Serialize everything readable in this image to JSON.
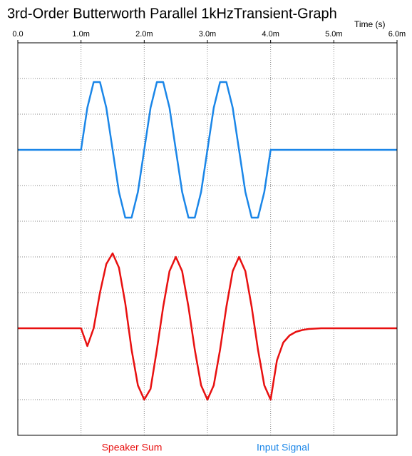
{
  "chart_data": {
    "type": "line",
    "title": "3rd-Order Butterworth Parallel 1kHzTransient-Graph",
    "x_label": "Time  (s)",
    "xlim": [
      0,
      0.006
    ],
    "xticks": [
      {
        "value": 0,
        "label": "0.0"
      },
      {
        "value": 0.001,
        "label": "1.0m"
      },
      {
        "value": 0.002,
        "label": "2.0m"
      },
      {
        "value": 0.003,
        "label": "3.0m"
      },
      {
        "value": 0.004,
        "label": "4.0m"
      },
      {
        "value": 0.005,
        "label": "5.0m"
      },
      {
        "value": 0.006,
        "label": "6.0m"
      }
    ],
    "ylim": [
      0,
      11
    ],
    "yticks": [
      0,
      1,
      2,
      3,
      4,
      5,
      6,
      7,
      8,
      9,
      10,
      11
    ],
    "grid": true,
    "x": [
      0,
      0.0001,
      0.0002,
      0.0003,
      0.0004,
      0.0005,
      0.0006,
      0.0007,
      0.0008,
      0.0009,
      0.001,
      0.0011,
      0.0012,
      0.0013,
      0.0014,
      0.0015,
      0.0016,
      0.0017,
      0.0018,
      0.0019,
      0.002,
      0.0021,
      0.0022,
      0.0023,
      0.0024,
      0.0025,
      0.0026,
      0.0027,
      0.0028,
      0.0029,
      0.003,
      0.0031,
      0.0032,
      0.0033,
      0.0034,
      0.0035,
      0.0036,
      0.0037,
      0.0038,
      0.0039,
      0.004,
      0.0041,
      0.0042,
      0.0043,
      0.0044,
      0.0045,
      0.0046,
      0.0047,
      0.0048,
      0.0049,
      0.005,
      0.0051,
      0.0052,
      0.0053,
      0.0054,
      0.0055,
      0.0056,
      0.0057,
      0.0058,
      0.0059,
      0.006
    ],
    "series": [
      {
        "name": "Input Signal",
        "color": "#1a86e8",
        "values": [
          8,
          8,
          8,
          8,
          8,
          8,
          8,
          8,
          8,
          8,
          8,
          9.18,
          9.9,
          9.9,
          9.18,
          8,
          6.82,
          6.1,
          6.1,
          6.82,
          8,
          9.18,
          9.9,
          9.9,
          9.18,
          8,
          6.82,
          6.1,
          6.1,
          6.82,
          8,
          9.18,
          9.9,
          9.9,
          9.18,
          8,
          6.82,
          6.1,
          6.1,
          6.82,
          8,
          8,
          8,
          8,
          8,
          8,
          8,
          8,
          8,
          8,
          8,
          8,
          8,
          8,
          8,
          8,
          8,
          8,
          8,
          8,
          8
        ]
      },
      {
        "name": "Speaker Sum",
        "color": "#e81010",
        "values": [
          3,
          3,
          3,
          3,
          3,
          3,
          3,
          3,
          3,
          3,
          3,
          2.5,
          3,
          4,
          4.8,
          5.1,
          4.7,
          3.7,
          2.4,
          1.4,
          1,
          1.3,
          2.4,
          3.6,
          4.6,
          5,
          4.6,
          3.6,
          2.4,
          1.4,
          1,
          1.4,
          2.4,
          3.6,
          4.6,
          5,
          4.6,
          3.6,
          2.4,
          1.4,
          1,
          2.1,
          2.6,
          2.8,
          2.9,
          2.95,
          2.98,
          2.99,
          3,
          3,
          3,
          3,
          3,
          3,
          3,
          3,
          3,
          3,
          3,
          3,
          3
        ]
      }
    ]
  }
}
